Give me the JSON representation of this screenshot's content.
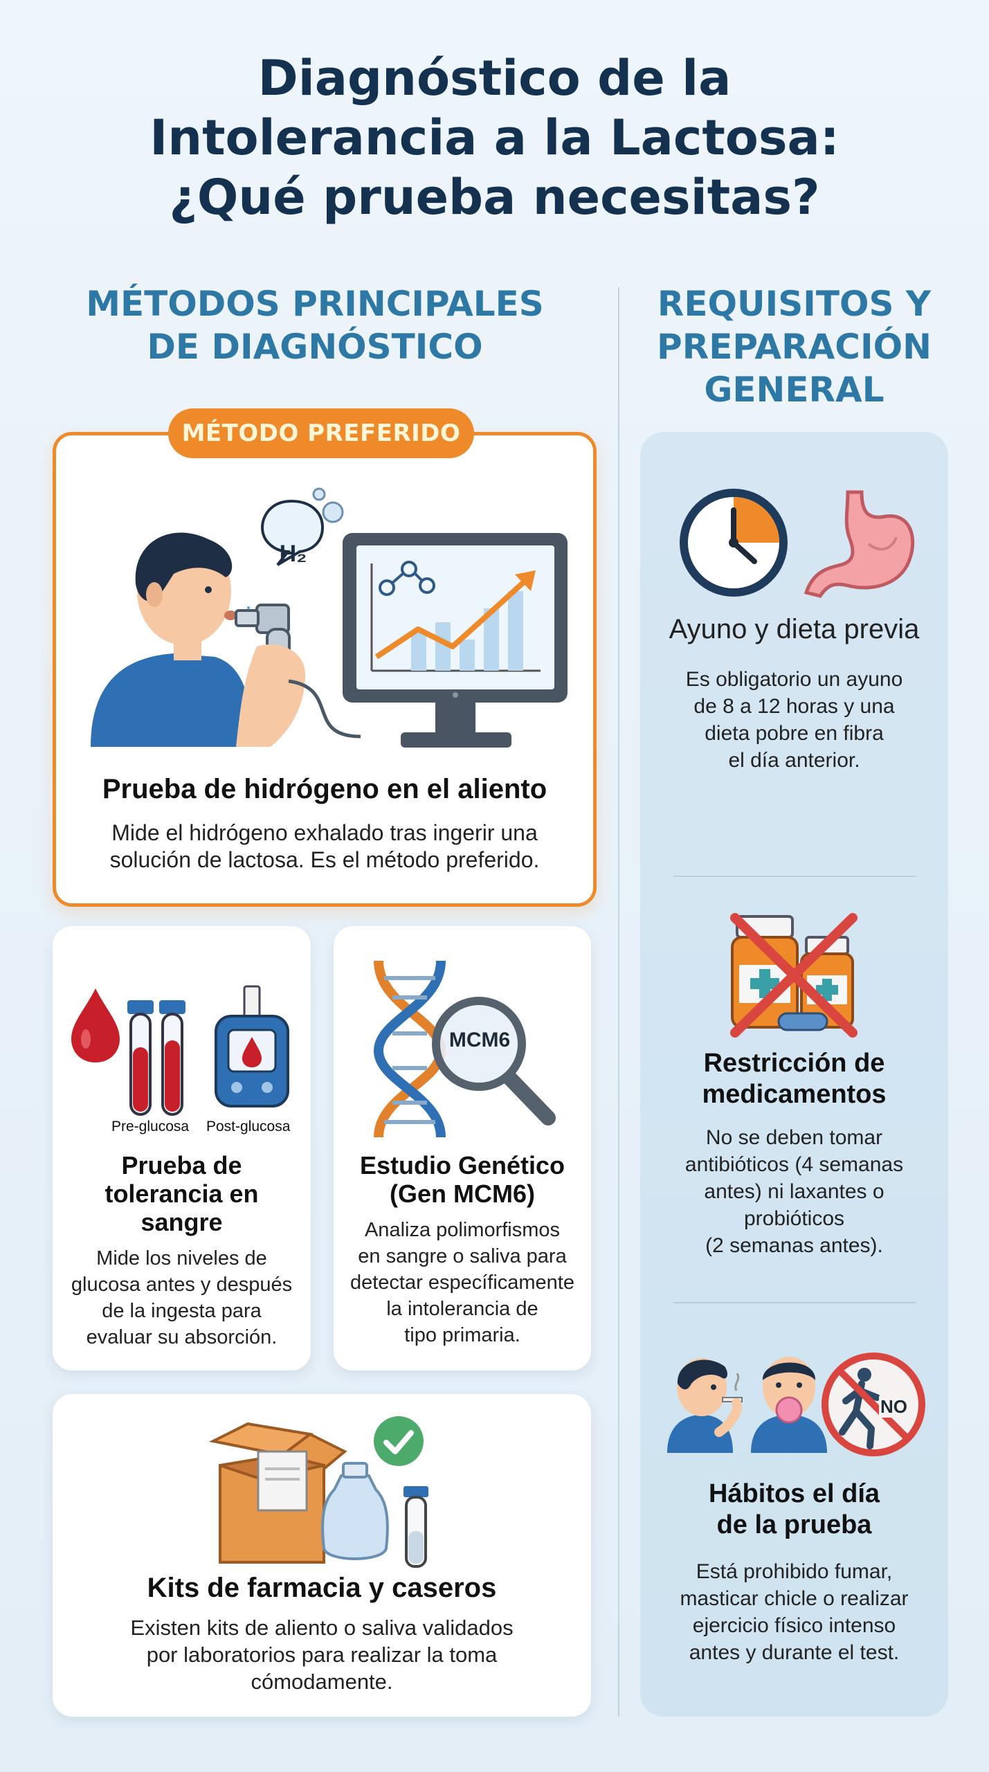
{
  "title": {
    "line1": "Diagnóstico de la",
    "line2": "Intolerancia a la Lactosa:",
    "line3": "¿Qué prueba necesitas?"
  },
  "left_heading": {
    "line1": "MÉTODOS PRINCIPALES",
    "line2": "DE DIAGNÓSTICO"
  },
  "right_heading": {
    "line1": "REQUISITOS Y",
    "line2": "PREPARACIÓN",
    "line3": "GENERAL"
  },
  "methods": {
    "breath": {
      "badge": "MÉTODO PREFERIDO",
      "h2_label": "H₂",
      "title": "Prueba de hidrógeno en el aliento",
      "desc_line1": "Mide el hidrógeno exhalado tras ingerir una",
      "desc_line2": "solución de lactosa. Es el método preferido."
    },
    "blood": {
      "label_pre": "Pre-glucosa",
      "label_post": "Post-glucosa",
      "title_line1": "Prueba de",
      "title_line2": "tolerancia en",
      "title_line3": "sangre",
      "desc_line1": "Mide los niveles de",
      "desc_line2": "glucosa antes y después",
      "desc_line3": "de la ingesta para",
      "desc_line4": "evaluar su absorción."
    },
    "genetic": {
      "magnifier_label": "MCM6",
      "title_line1": "Estudio Genético",
      "title_line2": "(Gen MCM6)",
      "desc_line1": "Analiza polimorfismos",
      "desc_line2": "en sangre o saliva para",
      "desc_line3": "detectar específicamente",
      "desc_line4": "la intolerancia de",
      "desc_line5": "tipo primaria."
    },
    "kits": {
      "title": "Kits de farmacia y caseros",
      "desc_line1": "Existen kits de aliento o saliva validados",
      "desc_line2": "por laboratorios para realizar la toma",
      "desc_line3": "cómodamente."
    }
  },
  "requirements": {
    "fasting": {
      "title": "Ayuno y dieta previa",
      "desc_line1": "Es obligatorio un ayuno",
      "desc_line2": "de 8 a 12 horas y una",
      "desc_line3": "dieta pobre en fibra",
      "desc_line4": "el día anterior."
    },
    "medication": {
      "title_line1": "Restricción de",
      "title_line2": "medicamentos",
      "desc_line1": "No se deben tomar",
      "desc_line2": "antibióticos (4 semanas",
      "desc_line3": "antes) ni laxantes o",
      "desc_line4": "probióticos",
      "desc_line5": "(2 semanas antes)."
    },
    "habits": {
      "no_label": "NO",
      "title_line1": "Hábitos el día",
      "title_line2": "de la prueba",
      "desc_line1": "Está prohibido fumar,",
      "desc_line2": "masticar chicle o realizar",
      "desc_line3": "ejercicio físico intenso",
      "desc_line4": "antes y durante el test."
    }
  },
  "colors": {
    "title": "#14324f",
    "heading": "#2e78a6",
    "accent_orange": "#ec8a2c",
    "panel_blue": "#d3e5f1",
    "card_white": "#ffffff",
    "blood_red": "#c8202a",
    "cross_red": "#d9453f"
  },
  "icons": [
    "person-breathing-icon",
    "hydrogen-bubble-icon",
    "monitor-chart-icon",
    "blood-drop-icon",
    "test-tubes-icon",
    "glucometer-icon",
    "dna-icon",
    "magnifier-icon",
    "box-kit-icon",
    "check-icon",
    "clock-icon",
    "stomach-icon",
    "medicine-bottles-crossed-icon",
    "smoking-person-icon",
    "gum-person-icon",
    "no-exercise-icon"
  ]
}
